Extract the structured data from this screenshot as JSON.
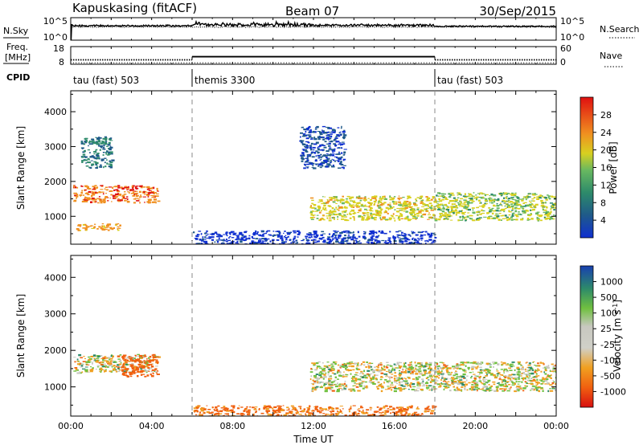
{
  "header": {
    "station": "Kapuskasing (fitACF)",
    "beam": "Beam 07",
    "date": "30/Sep/2015"
  },
  "side_labels": {
    "nsky": "N.Sky",
    "nsearch": "N.Search",
    "freq_line1": "Freq.",
    "freq_line2": "[MHz]",
    "nave": "Nave",
    "cpid": "CPID"
  },
  "cpid_segments": [
    {
      "label": "tau (fast) 503",
      "start_hour": 0,
      "end_hour": 6
    },
    {
      "label": "themis 3300",
      "start_hour": 6,
      "end_hour": 18
    },
    {
      "label": "tau (fast) 503",
      "start_hour": 18,
      "end_hour": 24
    }
  ],
  "chart_data": [
    {
      "type": "line",
      "panel": "noise",
      "left_axis": {
        "label": "N.Sky",
        "ticks": [
          "10^5",
          "10^0"
        ]
      },
      "right_axis": {
        "label": "N.Search",
        "ticks": [
          "10^5",
          "10^0"
        ]
      }
    },
    {
      "type": "line",
      "panel": "frequency",
      "left_axis": {
        "label": "Freq. [MHz]",
        "ticks": [
          18,
          8
        ]
      },
      "right_axis": {
        "label": "Nave",
        "ticks": [
          60,
          0
        ]
      },
      "freq_mhz": [
        {
          "start_hour": 0,
          "end_hour": 6,
          "value": 10.5
        },
        {
          "start_hour": 6,
          "end_hour": 18,
          "value": 12.3
        },
        {
          "start_hour": 18,
          "end_hour": 24,
          "value": 10.5
        }
      ]
    },
    {
      "type": "heatmap",
      "panel": "power",
      "xlabel": "",
      "ylabel": "Slant Range [km]",
      "xlim": [
        0,
        24
      ],
      "ylim": [
        200,
        4600
      ],
      "yticks": [
        1000,
        2000,
        3000,
        4000
      ],
      "colorbar": {
        "label": "Power [dB]",
        "ticks": [
          4,
          8,
          12,
          16,
          20,
          24,
          28
        ]
      },
      "features": [
        {
          "from_hour": 0.1,
          "to_hour": 4.3,
          "range_km": [
            1400,
            1900
          ],
          "level": 27
        },
        {
          "from_hour": 0.2,
          "to_hour": 2.5,
          "range_km": [
            600,
            800
          ],
          "level": 24
        },
        {
          "from_hour": 0.5,
          "to_hour": 2.0,
          "range_km": [
            2400,
            3300
          ],
          "level": 12
        },
        {
          "from_hour": 6.0,
          "to_hour": 18.0,
          "range_km": [
            200,
            600
          ],
          "level": 6
        },
        {
          "from_hour": 11.3,
          "to_hour": 13.5,
          "range_km": [
            2400,
            3600
          ],
          "level": 8
        },
        {
          "from_hour": 11.8,
          "to_hour": 18.0,
          "range_km": [
            900,
            1600
          ],
          "level": 20
        },
        {
          "from_hour": 18.0,
          "to_hour": 24.0,
          "range_km": [
            900,
            1700
          ],
          "level": 18
        }
      ]
    },
    {
      "type": "heatmap",
      "panel": "velocity",
      "xlabel": "Time UT",
      "ylabel": "Slant Range [km]",
      "xlim": [
        0,
        24
      ],
      "ylim": [
        200,
        4600
      ],
      "yticks": [
        1000,
        2000,
        3000,
        4000
      ],
      "xticks": [
        "00:00",
        "04:00",
        "08:00",
        "12:00",
        "16:00",
        "20:00",
        "00:00"
      ],
      "colorbar": {
        "label": "Velocity [m s-1]",
        "ticks": [
          1000,
          500,
          100,
          25,
          -25,
          -100,
          -500,
          -1000
        ]
      },
      "features": [
        {
          "from_hour": 0.1,
          "to_hour": 4.3,
          "range_km": [
            1400,
            1900
          ],
          "velocity": 0
        },
        {
          "from_hour": 2.5,
          "to_hour": 4.3,
          "range_km": [
            1300,
            1900
          ],
          "velocity": -300
        },
        {
          "from_hour": 6.0,
          "to_hour": 18.0,
          "range_km": [
            200,
            500
          ],
          "velocity": -150
        },
        {
          "from_hour": 11.8,
          "to_hour": 18.0,
          "range_km": [
            900,
            1700
          ],
          "velocity": 0
        },
        {
          "from_hour": 18.0,
          "to_hour": 24.0,
          "range_km": [
            900,
            1700
          ],
          "velocity": 0
        }
      ]
    }
  ]
}
